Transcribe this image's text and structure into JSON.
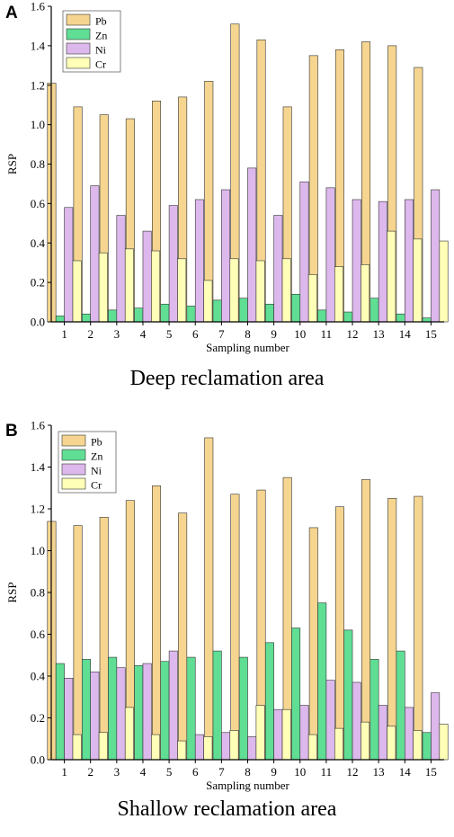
{
  "chart_data": [
    {
      "panel_label": "A",
      "type": "bar",
      "title": "Deep reclamation area",
      "xlabel": "Sampling number",
      "ylabel": "RSP",
      "ylim": [
        0,
        1.6
      ],
      "yticks": [
        "0.0",
        "0.2",
        "0.4",
        "0.6",
        "0.8",
        "1.0",
        "1.2",
        "1.4",
        "1.6"
      ],
      "categories": [
        "1",
        "2",
        "3",
        "4",
        "5",
        "6",
        "7",
        "8",
        "9",
        "10",
        "11",
        "12",
        "13",
        "14",
        "15"
      ],
      "legend_position": "top-left",
      "series": [
        {
          "name": "Pb",
          "color": "#F5D590",
          "values": [
            1.21,
            1.09,
            1.05,
            1.03,
            1.12,
            1.14,
            1.22,
            1.51,
            1.43,
            1.09,
            1.35,
            1.38,
            1.42,
            1.4,
            1.29
          ]
        },
        {
          "name": "Zn",
          "color": "#5FDE94",
          "values": [
            0.03,
            0.04,
            0.06,
            0.07,
            0.09,
            0.08,
            0.11,
            0.12,
            0.09,
            0.14,
            0.06,
            0.05,
            0.12,
            0.04,
            0.02
          ]
        },
        {
          "name": "Ni",
          "color": "#DDB8EC",
          "values": [
            0.58,
            0.69,
            0.54,
            0.46,
            0.59,
            0.62,
            0.67,
            0.78,
            0.54,
            0.71,
            0.68,
            0.62,
            0.61,
            0.62,
            0.67
          ]
        },
        {
          "name": "Cr",
          "color": "#FFFFB8",
          "values": [
            0.31,
            0.35,
            0.37,
            0.36,
            0.32,
            0.21,
            0.32,
            0.31,
            0.32,
            0.24,
            0.28,
            0.29,
            0.46,
            0.42,
            0.41
          ]
        }
      ]
    },
    {
      "panel_label": "B",
      "type": "bar",
      "title": "Shallow reclamation area",
      "xlabel": "Sampling number",
      "ylabel": "RSP",
      "ylim": [
        0,
        1.6
      ],
      "yticks": [
        "0.0",
        "0.2",
        "0.4",
        "0.6",
        "0.8",
        "1.0",
        "1.2",
        "1.4",
        "1.6"
      ],
      "categories": [
        "1",
        "2",
        "3",
        "4",
        "5",
        "6",
        "7",
        "8",
        "9",
        "10",
        "11",
        "12",
        "13",
        "14",
        "15"
      ],
      "legend_position": "top-left",
      "series": [
        {
          "name": "Pb",
          "color": "#F5D590",
          "values": [
            1.14,
            1.12,
            1.16,
            1.24,
            1.31,
            1.18,
            1.54,
            1.27,
            1.29,
            1.35,
            1.11,
            1.21,
            1.34,
            1.25,
            1.26
          ]
        },
        {
          "name": "Zn",
          "color": "#5FDE94",
          "values": [
            0.46,
            0.48,
            0.49,
            0.45,
            0.47,
            0.49,
            0.52,
            0.49,
            0.56,
            0.63,
            0.75,
            0.62,
            0.48,
            0.52,
            0.13
          ]
        },
        {
          "name": "Ni",
          "color": "#DDB8EC",
          "values": [
            0.39,
            0.42,
            0.44,
            0.46,
            0.52,
            0.12,
            0.13,
            0.11,
            0.24,
            0.26,
            0.38,
            0.37,
            0.26,
            0.25,
            0.32
          ]
        },
        {
          "name": "Cr",
          "color": "#FFFFB8",
          "values": [
            0.12,
            0.13,
            0.25,
            0.12,
            0.09,
            0.11,
            0.14,
            0.26,
            0.24,
            0.12,
            0.15,
            0.18,
            0.16,
            0.14,
            0.17
          ]
        }
      ]
    }
  ]
}
